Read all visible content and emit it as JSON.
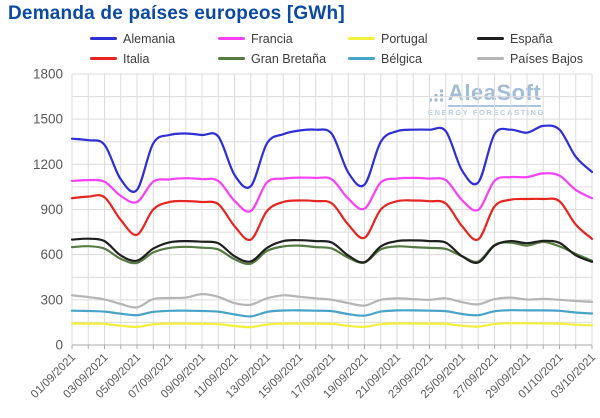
{
  "watermark": {
    "brand": "AleaSoft",
    "tagline": "ENERGY FORECASTING",
    "color": "#a3bcd8"
  },
  "colors": {
    "title": "#0b4aa2",
    "grid": "#dcdcdc",
    "axis": "#ababab",
    "tick_text": "#595959",
    "legend_text": "#3d3d3d"
  },
  "chart_data": {
    "type": "line",
    "title": "Demanda de países europeos [GWh]",
    "xlabel": "",
    "ylabel": "",
    "ylim": [
      0,
      1800
    ],
    "y_major_ticks": [
      0,
      300,
      600,
      900,
      1200,
      1500,
      1800
    ],
    "y_minor_step": 150,
    "grid": true,
    "legend_position": "top",
    "n_points": 33,
    "x_points_per_tick": 2,
    "x_tick_labels": [
      "01/09/2021",
      "03/09/2021",
      "05/09/2021",
      "07/09/2021",
      "09/09/2021",
      "11/09/2021",
      "13/09/2021",
      "15/09/2021",
      "17/09/2021",
      "19/09/2021",
      "21/09/2021",
      "23/09/2021",
      "25/09/2021",
      "27/09/2021",
      "29/09/2021",
      "01/10/2021",
      "03/10/2021"
    ],
    "draw_order": [
      7,
      6,
      2,
      5,
      3,
      4,
      1,
      0
    ],
    "series": [
      {
        "name": "Alemania",
        "color": "#2e2ed6",
        "values": [
          1370,
          1360,
          1330,
          1100,
          1030,
          1340,
          1395,
          1405,
          1395,
          1385,
          1130,
          1055,
          1340,
          1400,
          1425,
          1430,
          1400,
          1145,
          1065,
          1350,
          1420,
          1430,
          1430,
          1420,
          1160,
          1080,
          1400,
          1430,
          1410,
          1455,
          1430,
          1250,
          1150
        ]
      },
      {
        "name": "Francia",
        "color": "#f741f7",
        "values": [
          1090,
          1095,
          1085,
          990,
          950,
          1085,
          1100,
          1108,
          1102,
          1090,
          958,
          890,
          1080,
          1105,
          1112,
          1110,
          1100,
          972,
          905,
          1080,
          1105,
          1110,
          1105,
          1095,
          962,
          898,
          1090,
          1115,
          1115,
          1140,
          1125,
          1030,
          975
        ]
      },
      {
        "name": "Portugal",
        "color": "#f3ef3d",
        "values": [
          143,
          142,
          140,
          128,
          120,
          137,
          142,
          142,
          141,
          139,
          126,
          119,
          136,
          142,
          143,
          142,
          140,
          127,
          121,
          138,
          143,
          143,
          142,
          140,
          128,
          122,
          139,
          144,
          144,
          143,
          142,
          135,
          131
        ]
      },
      {
        "name": "España",
        "color": "#1f1f1f",
        "values": [
          700,
          706,
          690,
          595,
          560,
          640,
          682,
          690,
          686,
          676,
          590,
          555,
          645,
          690,
          696,
          690,
          680,
          594,
          550,
          655,
          690,
          695,
          690,
          680,
          590,
          548,
          660,
          690,
          676,
          692,
          678,
          596,
          552
        ]
      },
      {
        "name": "Italia",
        "color": "#e62420",
        "values": [
          975,
          986,
          982,
          830,
          732,
          900,
          950,
          956,
          950,
          936,
          790,
          700,
          890,
          950,
          960,
          956,
          940,
          800,
          712,
          900,
          955,
          960,
          955,
          940,
          790,
          702,
          920,
          965,
          970,
          970,
          955,
          800,
          705
        ]
      },
      {
        "name": "Gran Bretaña",
        "color": "#557a42",
        "values": [
          650,
          656,
          640,
          572,
          545,
          615,
          645,
          652,
          646,
          635,
          570,
          540,
          625,
          655,
          660,
          650,
          640,
          580,
          548,
          635,
          655,
          650,
          645,
          638,
          590,
          555,
          665,
          680,
          660,
          685,
          655,
          605,
          560
        ]
      },
      {
        "name": "Bélgica",
        "color": "#48a3c8",
        "values": [
          228,
          226,
          222,
          208,
          198,
          220,
          227,
          228,
          226,
          222,
          203,
          190,
          220,
          229,
          230,
          228,
          225,
          205,
          195,
          222,
          230,
          230,
          228,
          225,
          206,
          198,
          224,
          231,
          230,
          230,
          227,
          216,
          209
        ]
      },
      {
        "name": "Países Bajos",
        "color": "#b5b5b5",
        "values": [
          330,
          318,
          303,
          272,
          250,
          305,
          312,
          315,
          338,
          320,
          278,
          268,
          310,
          330,
          320,
          310,
          300,
          278,
          262,
          300,
          310,
          305,
          300,
          310,
          285,
          270,
          305,
          315,
          302,
          306,
          300,
          292,
          286
        ]
      }
    ]
  }
}
